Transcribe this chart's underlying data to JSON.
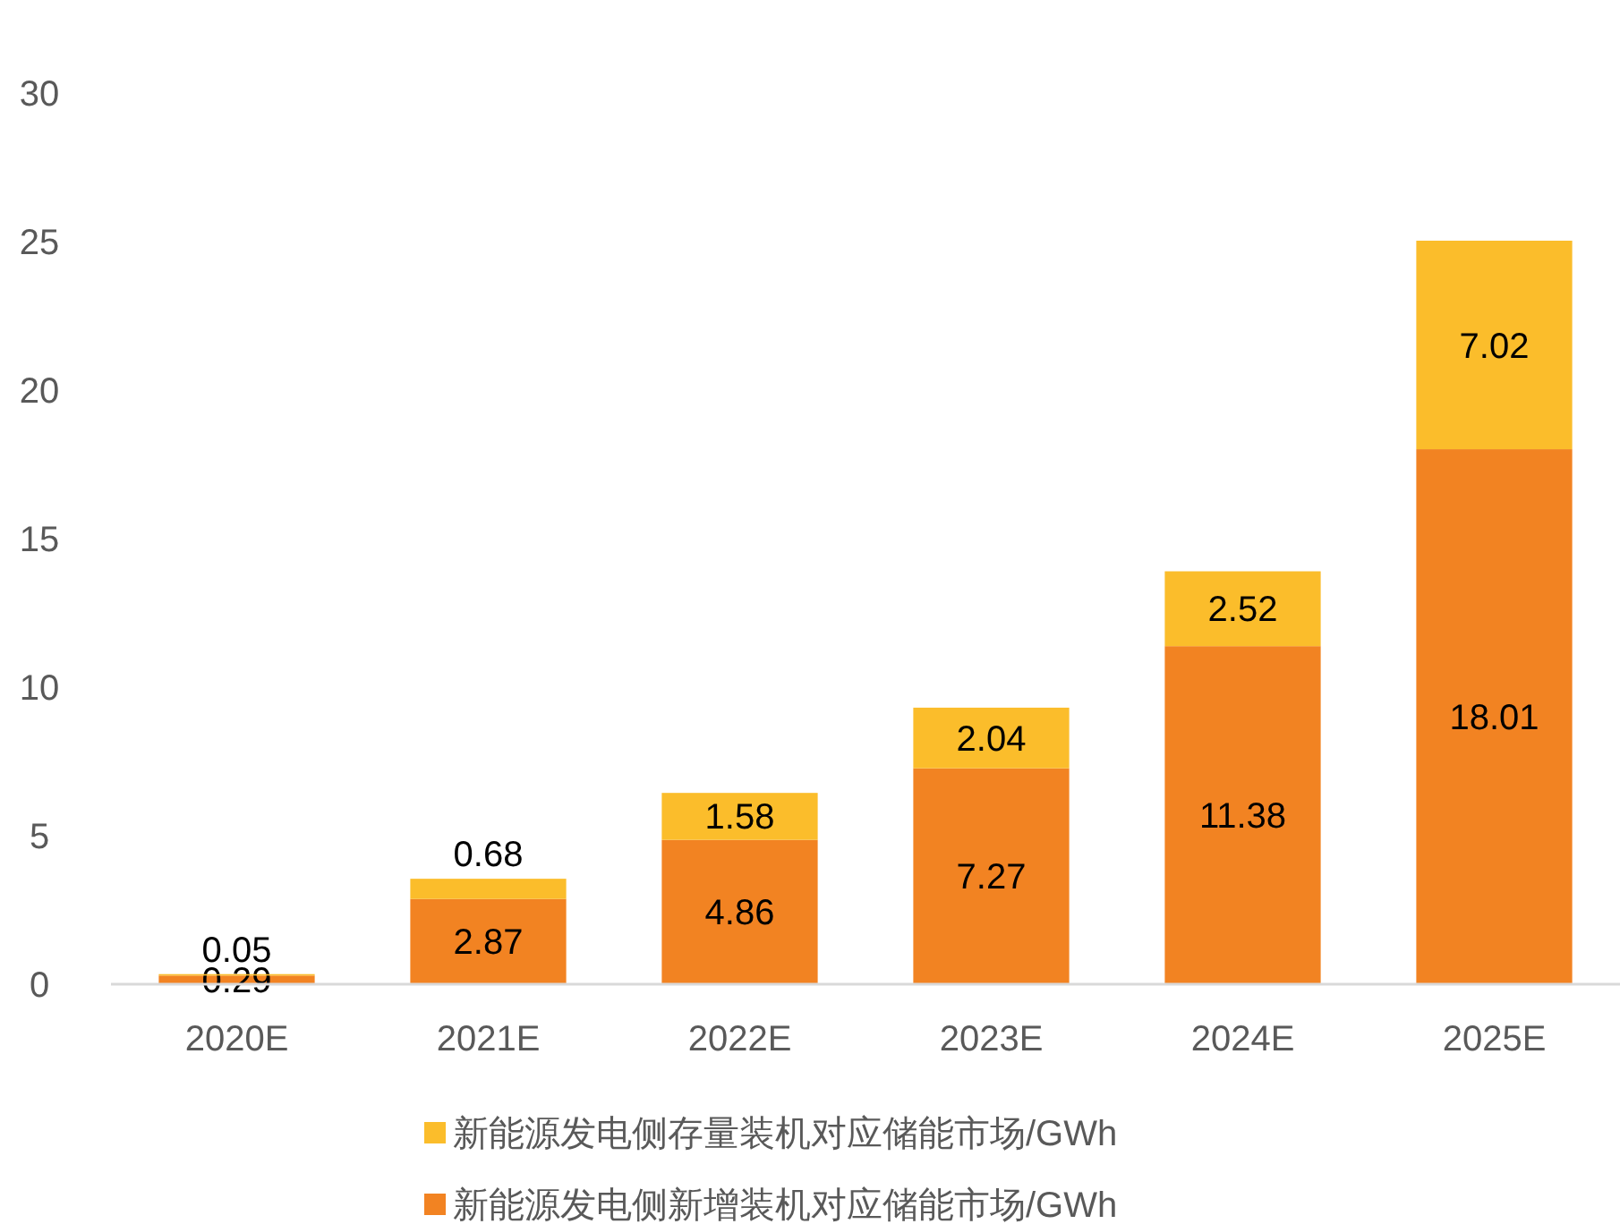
{
  "chart_data": {
    "type": "bar",
    "categories": [
      "2020E",
      "2021E",
      "2022E",
      "2023E",
      "2024E",
      "2025E"
    ],
    "series": [
      {
        "name": "新能源发电侧新增装机对应储能市场/GWh",
        "color": "#f28322",
        "values": [
          0.29,
          2.87,
          4.86,
          7.27,
          11.38,
          18.01
        ]
      },
      {
        "name": "新能源发电侧存量装机对应储能市场/GWh",
        "color": "#fbbd2b",
        "values": [
          0.05,
          0.68,
          1.58,
          2.04,
          2.52,
          7.02
        ]
      }
    ],
    "stacked": true,
    "ylim": [
      0,
      30
    ],
    "yticks": [
      0,
      5,
      10,
      15,
      20,
      25,
      30
    ],
    "data_labels": true,
    "legend": "bottom"
  }
}
